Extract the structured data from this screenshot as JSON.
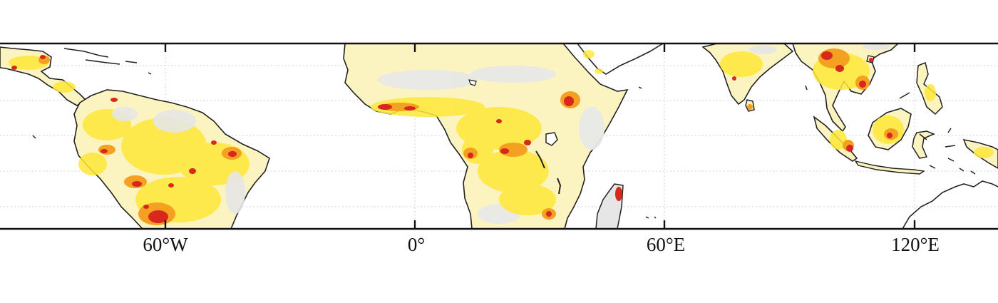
{
  "map": {
    "lon_labels": [
      "60°W",
      "0°",
      "60°E",
      "120°E"
    ],
    "colors": {
      "ocean": "#ffffff",
      "land_background": "#e6e6e6",
      "pale": "#fbf3c0",
      "yellow": "#ffe838",
      "orange": "#f4a020",
      "red": "#d8271c",
      "coastline": "#222222",
      "graticule": "#cfcfcf"
    }
  }
}
